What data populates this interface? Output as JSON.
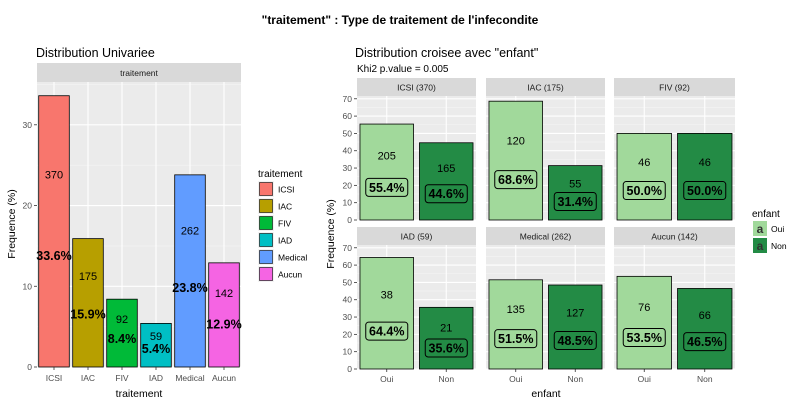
{
  "figure": {
    "title": "\"traitement\" : Type de traitement de l'infecondite"
  },
  "chart_data": [
    {
      "type": "bar",
      "title": "Distribution Univariee",
      "strip": "traitement",
      "categories": [
        "ICSI",
        "IAC",
        "FIV",
        "IAD",
        "Medical",
        "Aucun"
      ],
      "counts": [
        370,
        175,
        92,
        59,
        262,
        142
      ],
      "values": [
        33.6,
        15.9,
        8.4,
        5.4,
        23.8,
        12.9
      ],
      "pct_labels": [
        "33.6%",
        "15.9%",
        "8.4%",
        "5.4%",
        "23.8%",
        "12.9%"
      ],
      "colors": [
        "#F8766D",
        "#B79F00",
        "#00BA38",
        "#00BFC4",
        "#619CFF",
        "#F564E3"
      ],
      "xlabel": "traitement",
      "ylabel": "Frequence (%)",
      "yticks": [
        0,
        10,
        20,
        30
      ],
      "ylim": [
        0,
        35.3
      ],
      "legend": {
        "title": "traitement",
        "position": "right",
        "entries": [
          "ICSI",
          "IAC",
          "FIV",
          "IAD",
          "Medical",
          "Aucun"
        ]
      }
    },
    {
      "type": "bar",
      "title": "Distribution croisee avec \"enfant\"",
      "subtitle": "Khi2 p.value = 0.005",
      "categories": [
        "Oui",
        "Non"
      ],
      "colors": [
        "#A1D99B",
        "#238B45"
      ],
      "xlabel": "enfant",
      "ylabel": "Frequence (%)",
      "yticks": [
        0,
        10,
        20,
        30,
        40,
        50,
        60,
        70
      ],
      "ylim": [
        0,
        71.6
      ],
      "facets": [
        {
          "name": "ICSI (370)",
          "counts": [
            205,
            165
          ],
          "values": [
            55.4,
            44.6
          ],
          "pct_labels": [
            "55.4%",
            "44.6%"
          ]
        },
        {
          "name": "IAC (175)",
          "counts": [
            120,
            55
          ],
          "values": [
            68.6,
            31.4
          ],
          "pct_labels": [
            "68.6%",
            "31.4%"
          ]
        },
        {
          "name": "FIV (92)",
          "counts": [
            46,
            46
          ],
          "values": [
            50.0,
            50.0
          ],
          "pct_labels": [
            "50.0%",
            "50.0%"
          ]
        },
        {
          "name": "IAD (59)",
          "counts": [
            38,
            21
          ],
          "values": [
            64.4,
            35.6
          ],
          "pct_labels": [
            "64.4%",
            "35.6%"
          ]
        },
        {
          "name": "Medical (262)",
          "counts": [
            135,
            127
          ],
          "values": [
            51.5,
            48.5
          ],
          "pct_labels": [
            "51.5%",
            "48.5%"
          ]
        },
        {
          "name": "Aucun (142)",
          "counts": [
            76,
            66
          ],
          "values": [
            53.5,
            46.5
          ],
          "pct_labels": [
            "53.5%",
            "46.5%"
          ]
        }
      ],
      "legend": {
        "title": "enfant",
        "position": "right",
        "key_glyph": "a",
        "entries": [
          "Oui",
          "Non"
        ]
      }
    }
  ]
}
